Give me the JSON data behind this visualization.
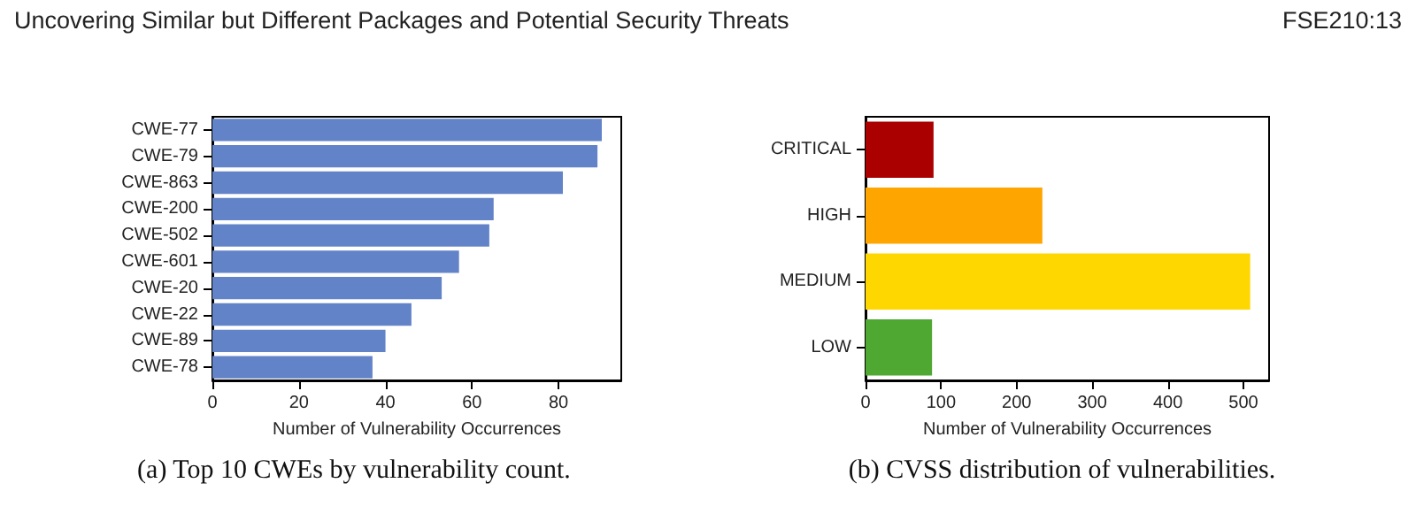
{
  "chart_data": [
    {
      "type": "bar",
      "orientation": "horizontal",
      "title": "(a) Top 10 CWEs by vulnerability count.",
      "annotations": [
        "Uncovering Similar but Different Packages and Potential Security Threats"
      ],
      "xlabel": "Number of Vulnerability Occurrences",
      "categories": [
        "CWE-77",
        "CWE-79",
        "CWE-863",
        "CWE-200",
        "CWE-502",
        "CWE-601",
        "CWE-20",
        "CWE-22",
        "CWE-89",
        "CWE-78"
      ],
      "values": [
        90,
        89,
        81,
        65,
        64,
        57,
        53,
        46,
        40,
        37
      ],
      "color": "#6383c8",
      "xlim": [
        0,
        94.5
      ],
      "xticks": [
        0,
        20,
        40,
        60,
        80
      ],
      "grid": false
    },
    {
      "type": "bar",
      "orientation": "horizontal",
      "title": "(b) CVSS distribution of vulnerabilities.",
      "annotations": [
        "FSE210:13"
      ],
      "xlabel": "Number of Vulnerability Occurrences",
      "categories": [
        "CRITICAL",
        "HIGH",
        "MEDIUM",
        "LOW"
      ],
      "values": [
        90,
        234,
        509,
        88
      ],
      "colors": [
        "#aa0000",
        "#ffa500",
        "#ffd700",
        "#4fa832"
      ],
      "xlim": [
        0,
        534
      ],
      "xticks": [
        0,
        100,
        200,
        300,
        400,
        500
      ],
      "grid": false
    }
  ]
}
